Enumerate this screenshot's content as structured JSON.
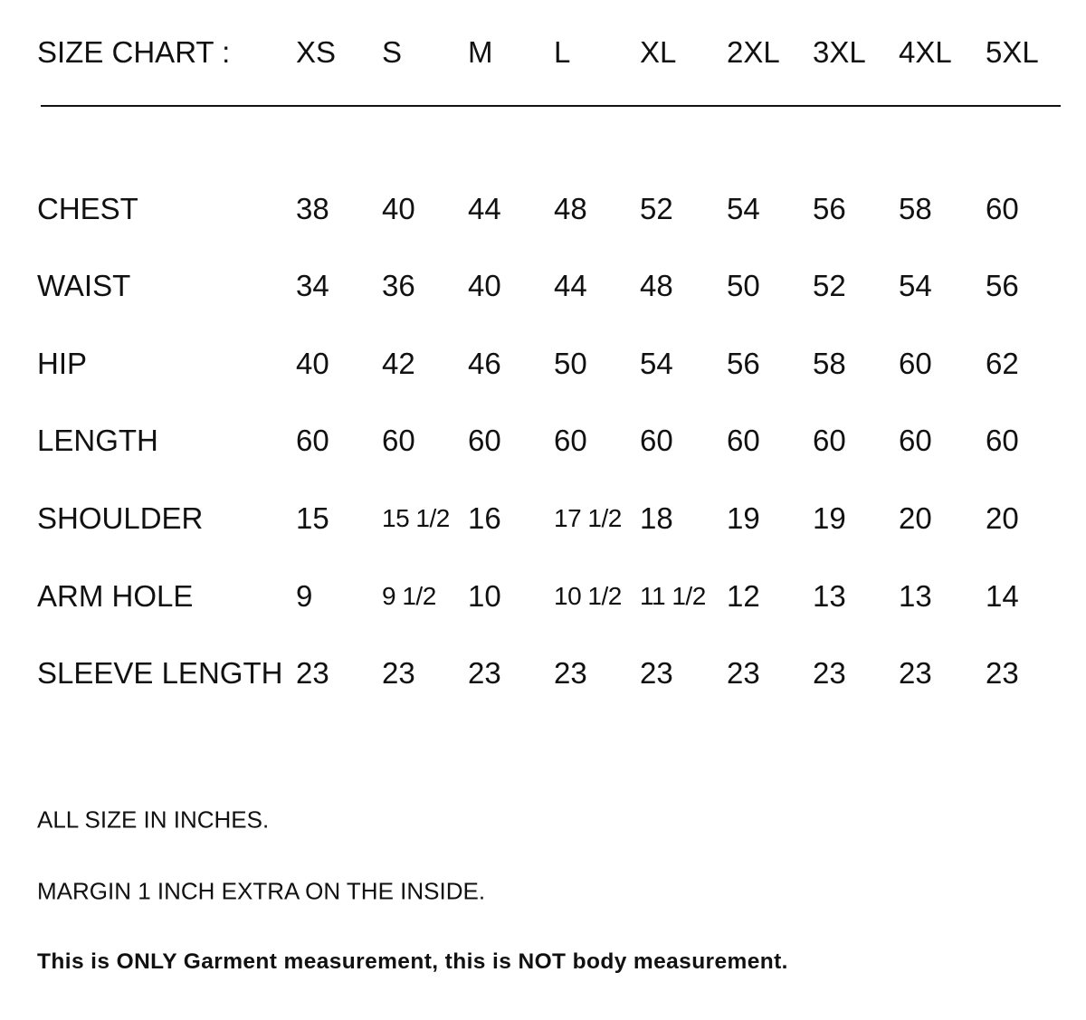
{
  "header": {
    "title": "SIZE CHART :",
    "sizes": [
      "XS",
      "S",
      "M",
      "L",
      "XL",
      "2XL",
      "3XL",
      "4XL",
      "5XL"
    ]
  },
  "rows": [
    {
      "label": "CHEST",
      "values": [
        "38",
        "40",
        "44",
        "48",
        "52",
        "54",
        "56",
        "58",
        "60"
      ]
    },
    {
      "label": "WAIST",
      "values": [
        "34",
        "36",
        "40",
        "44",
        "48",
        "50",
        "52",
        "54",
        "56"
      ]
    },
    {
      "label": "HIP",
      "values": [
        "40",
        "42",
        "46",
        "50",
        "54",
        "56",
        "58",
        "60",
        "62"
      ]
    },
    {
      "label": "LENGTH",
      "values": [
        "60",
        "60",
        "60",
        "60",
        "60",
        "60",
        "60",
        "60",
        "60"
      ]
    },
    {
      "label": "SHOULDER",
      "values": [
        "15",
        "15 1/2",
        "16",
        "17 1/2",
        "18",
        "19",
        "19",
        "20",
        "20"
      ]
    },
    {
      "label": "ARM HOLE",
      "values": [
        "9",
        "9 1/2",
        "10",
        "10 1/2",
        "11 1/2",
        "12",
        "13",
        "13",
        "14"
      ]
    },
    {
      "label": "SLEEVE LENGTH",
      "values": [
        "23",
        "23",
        "23",
        "23",
        "23",
        "23",
        "23",
        "23",
        "23"
      ]
    }
  ],
  "notes": [
    "ALL SIZE IN INCHES.",
    "MARGIN 1 INCH EXTRA ON THE INSIDE.",
    "This is ONLY Garment measurement, this is NOT body measurement."
  ]
}
